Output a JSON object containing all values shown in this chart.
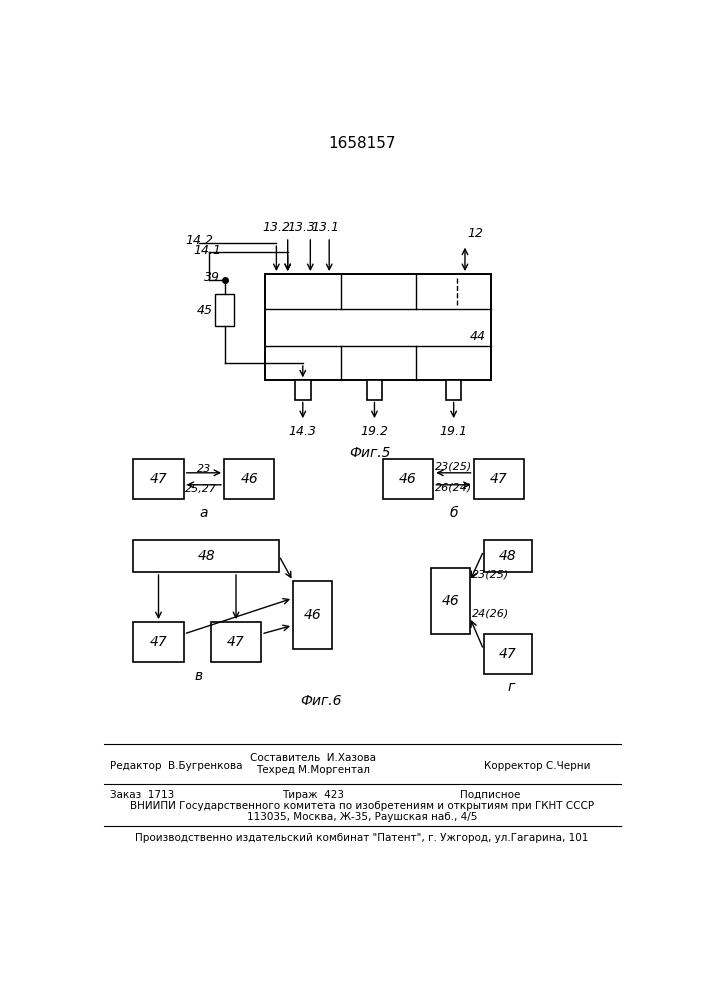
{
  "title": "1658157",
  "line_color": "#000000",
  "bg_color": "#ffffff",
  "fig5_label": "Фиг.5",
  "fig6_label": "Фиг.6",
  "footer": {
    "line1_left": "Редактор  В.Бугренкова",
    "line1_center_top": "Составитель  И.Хазова",
    "line1_center_bot": "Техред М.Моргентал",
    "line1_right": "Корректор С.Черни",
    "line2_left": "Заказ  1713",
    "line2_center": "Тираж  423",
    "line2_right": "Подписное",
    "line3": "ВНИИПИ Государственного комитета по изобретениям и открытиям при ГКНТ СССР",
    "line4": "113035, Москва, Ж-35, Раушская наб., 4/5",
    "line5": "Производственно издательский комбинат \"Патент\", г. Ужгород, ул.Гагарина, 101"
  }
}
